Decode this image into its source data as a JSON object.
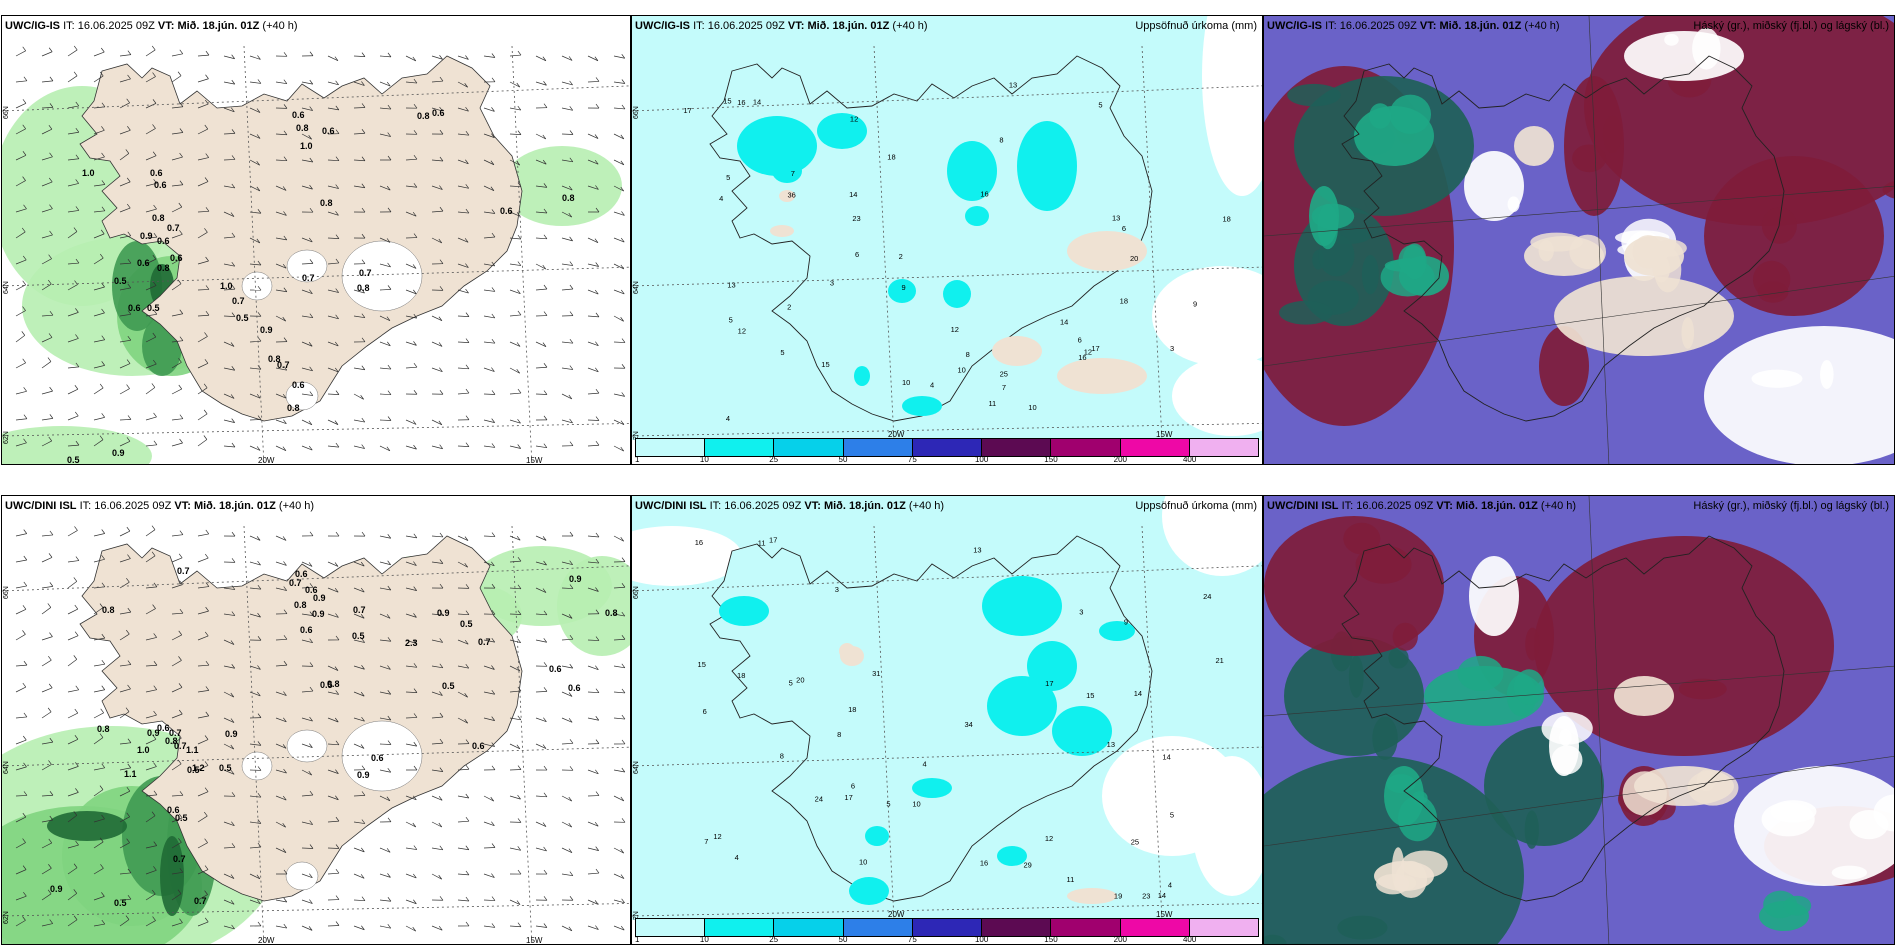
{
  "panels": [
    {
      "id": "p1",
      "model": "UWC/IG-IS",
      "it_label": "IT:",
      "it": "16.06.2025 09Z",
      "vt_label": "VT:",
      "vt": "Mið. 18.jún. 01Z",
      "lead": "(+40 h)",
      "right": ""
    },
    {
      "id": "p2",
      "model": "UWC/IG-IS",
      "it_label": "IT:",
      "it": "16.06.2025 09Z",
      "vt_label": "VT:",
      "vt": "Mið. 18.jún. 01Z",
      "lead": "(+40 h)",
      "right": "Uppsöfnuð úrkoma (mm)"
    },
    {
      "id": "p3",
      "model": "UWC/IG-IS",
      "it_label": "IT:",
      "it": "16.06.2025 09Z",
      "vt_label": "VT:",
      "vt": "Mið. 18.jún. 01Z",
      "lead": "(+40 h)",
      "right": "Háský (gr.), miðský (fj.bl.) og lágský (bl.)"
    },
    {
      "id": "p4",
      "model": "UWC/DINI ISL",
      "it_label": "IT:",
      "it": "16.06.2025 09Z",
      "vt_label": "VT:",
      "vt": "Mið. 18.jún. 01Z",
      "lead": "(+40 h)",
      "right": ""
    },
    {
      "id": "p5",
      "model": "UWC/DINI ISL",
      "it_label": "IT:",
      "it": "16.06.2025 09Z",
      "vt_label": "VT:",
      "vt": "Mið. 18.jún. 01Z",
      "lead": "(+40 h)",
      "right": "Uppsöfnuð úrkoma (mm)"
    },
    {
      "id": "p6",
      "model": "UWC/DINI ISL",
      "it_label": "IT:",
      "it": "16.06.2025 09Z",
      "vt_label": "VT:",
      "vt": "Mið. 18.jún. 01Z",
      "lead": "(+40 h)",
      "right": "Háský (gr.), miðský (fj.bl.) og lágský (bl.)"
    }
  ],
  "grid_labels": {
    "lon1": "20W",
    "lon2": "15W",
    "lat1": "66N",
    "lat2": "64N",
    "lat3": "62N"
  },
  "legend": {
    "ticks": [
      "1",
      "10",
      "25",
      "50",
      "75",
      "100",
      "150",
      "200",
      "400"
    ],
    "colors": [
      "#c4fbfb",
      "#10f0ee",
      "#06d0ea",
      "#2d7fe8",
      "#2d27b6",
      "#5c0a52",
      "#a0006e",
      "#ee08a6",
      "#f0b0f0"
    ]
  },
  "wind_values": {
    "ig": [
      "1.0",
      "0.6",
      "0.6",
      "0.7",
      "0.8",
      "0.6",
      "0.9",
      "0.6",
      "0.5",
      "0.6",
      "0.5",
      "0.8",
      "0.6",
      "1.0",
      "0.7",
      "0.5",
      "0.9",
      "0.8",
      "0.7",
      "0.6",
      "0.8",
      "0.6",
      "0.8",
      "1.0",
      "0.6",
      "0.8",
      "0.6",
      "0.8",
      "0.7",
      "0.8",
      "0.5",
      "0.9",
      "0.6",
      "0.8",
      "0.7"
    ],
    "dini": [
      "0.7",
      "0.8",
      "0.6",
      "0.9",
      "0.6",
      "0.8",
      "0.9",
      "0.7",
      "0.6",
      "0.8",
      "1.1",
      "0.7",
      "0.8",
      "1.0",
      "0.9",
      "0.8",
      "0.6",
      "0.9",
      "0.7",
      "1.1",
      "1.2",
      "0.5",
      "0.6",
      "0.5",
      "0.7",
      "0.5",
      "0.7",
      "0.5",
      "0.6",
      "0.9",
      "0.6",
      "0.5",
      "0.9",
      "0.5",
      "0.8",
      "0.9",
      "0.6",
      "0.5",
      "0.7",
      "0.9",
      "2.3",
      "0.5",
      "0.7",
      "0.6"
    ]
  },
  "precip_values": {
    "ig": [
      "10",
      "8",
      "16",
      "17",
      "18",
      "12",
      "10",
      "13",
      "13",
      "7",
      "2",
      "3",
      "4",
      "10",
      "5",
      "7",
      "6",
      "12",
      "9",
      "6",
      "14",
      "20",
      "36",
      "23",
      "25",
      "15",
      "13",
      "11",
      "12",
      "14",
      "15",
      "14",
      "18",
      "12",
      "16",
      "18",
      "16",
      "17",
      "2",
      "3",
      "4",
      "5",
      "6",
      "5",
      "4",
      "8",
      "5",
      "9"
    ],
    "dini": [
      "4",
      "5",
      "11",
      "13",
      "14",
      "3",
      "10",
      "8",
      "17",
      "15",
      "14",
      "13",
      "16",
      "19",
      "18",
      "12",
      "34",
      "21",
      "24",
      "31",
      "23",
      "20",
      "29",
      "24",
      "25",
      "17",
      "16",
      "12",
      "9",
      "7",
      "6",
      "5",
      "4",
      "5",
      "3",
      "15",
      "18",
      "17",
      "8",
      "10",
      "6",
      "4",
      "14",
      "11"
    ]
  },
  "colors": {
    "land": "#efe2d3",
    "sea_rain": "#c4fbfb",
    "green1": "#b7eeb1",
    "green2": "#7fd480",
    "green3": "#3f9a52",
    "green4": "#1f6a35",
    "maroon": "#7f1c3a",
    "slateblue": "#6a62c8",
    "teal": "#1f5f58"
  }
}
